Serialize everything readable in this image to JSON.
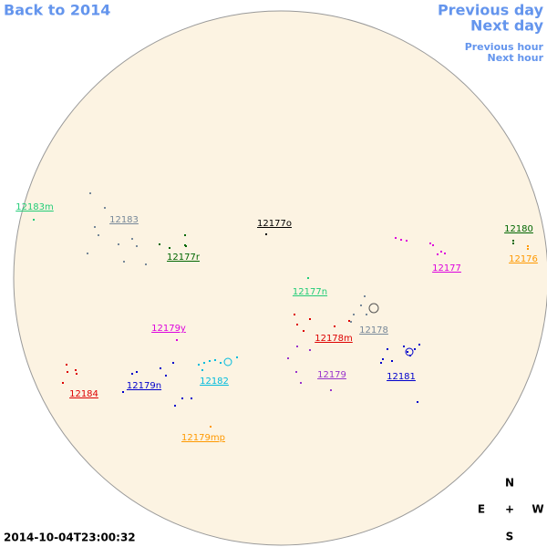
{
  "navigation": {
    "back": "Back to 2014",
    "previous_day": "Previous day",
    "next_day": "Next day",
    "previous_hour": "Previous hour",
    "next_hour": "Next hour"
  },
  "regions": [
    {
      "label": "12183m",
      "color": "#22cc77"
    },
    {
      "label": "12183",
      "color": "#778899"
    },
    {
      "label": "12177o",
      "color": "#000000"
    },
    {
      "label": "12180",
      "color": "#006600"
    },
    {
      "label": "12176",
      "color": "#ff9900"
    },
    {
      "label": "12177r",
      "color": "#006600"
    },
    {
      "label": "12177",
      "color": "#dd00dd"
    },
    {
      "label": "12177n",
      "color": "#22cc77"
    },
    {
      "label": "12179y",
      "color": "#dd00dd"
    },
    {
      "label": "12178",
      "color": "#778899"
    },
    {
      "label": "12178m",
      "color": "#dd0000"
    },
    {
      "label": "12179",
      "color": "#9933cc"
    },
    {
      "label": "12181",
      "color": "#0000cc"
    },
    {
      "label": "12182",
      "color": "#00bbdd"
    },
    {
      "label": "12179n",
      "color": "#0000cc"
    },
    {
      "label": "12184",
      "color": "#dd0000"
    },
    {
      "label": "12179mp",
      "color": "#ff9900"
    }
  ],
  "timestamp": "2014-10-04T23:00:32",
  "compass": {
    "north": "N",
    "east": "E",
    "center": "+",
    "west": "W",
    "south": "S"
  }
}
